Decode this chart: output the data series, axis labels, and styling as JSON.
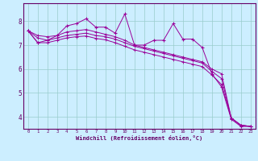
{
  "xlabel": "Windchill (Refroidissement éolien,°C)",
  "background_color": "#cceeff",
  "line_color": "#990099",
  "grid_color": "#99cccc",
  "xlim": [
    -0.5,
    23.5
  ],
  "ylim": [
    3.5,
    8.75
  ],
  "yticks": [
    4,
    5,
    6,
    7,
    8
  ],
  "xticks": [
    0,
    1,
    2,
    3,
    4,
    5,
    6,
    7,
    8,
    9,
    10,
    11,
    12,
    13,
    14,
    15,
    16,
    17,
    18,
    19,
    20,
    21,
    22,
    23
  ],
  "series1_y": [
    7.6,
    7.1,
    7.2,
    7.4,
    7.8,
    7.9,
    8.1,
    7.75,
    7.75,
    7.5,
    8.3,
    7.0,
    7.0,
    7.2,
    7.2,
    7.9,
    7.25,
    7.25,
    6.9,
    5.8,
    5.25,
    3.9,
    3.6,
    3.6
  ],
  "series2_y": [
    7.6,
    7.4,
    7.35,
    7.4,
    7.55,
    7.6,
    7.65,
    7.55,
    7.45,
    7.35,
    7.2,
    7.0,
    6.9,
    6.8,
    6.7,
    6.6,
    6.5,
    6.4,
    6.3,
    6.0,
    5.8,
    3.95,
    3.65,
    3.6
  ],
  "series3_y": [
    7.6,
    7.3,
    7.2,
    7.3,
    7.4,
    7.45,
    7.5,
    7.4,
    7.35,
    7.25,
    7.1,
    6.95,
    6.85,
    6.75,
    6.65,
    6.55,
    6.45,
    6.35,
    6.25,
    5.9,
    5.6,
    3.95,
    3.65,
    3.6
  ],
  "series4_y": [
    7.6,
    7.1,
    7.1,
    7.2,
    7.3,
    7.35,
    7.38,
    7.28,
    7.22,
    7.1,
    6.95,
    6.8,
    6.7,
    6.6,
    6.5,
    6.4,
    6.3,
    6.2,
    6.1,
    5.75,
    5.35,
    3.95,
    3.65,
    3.6
  ]
}
